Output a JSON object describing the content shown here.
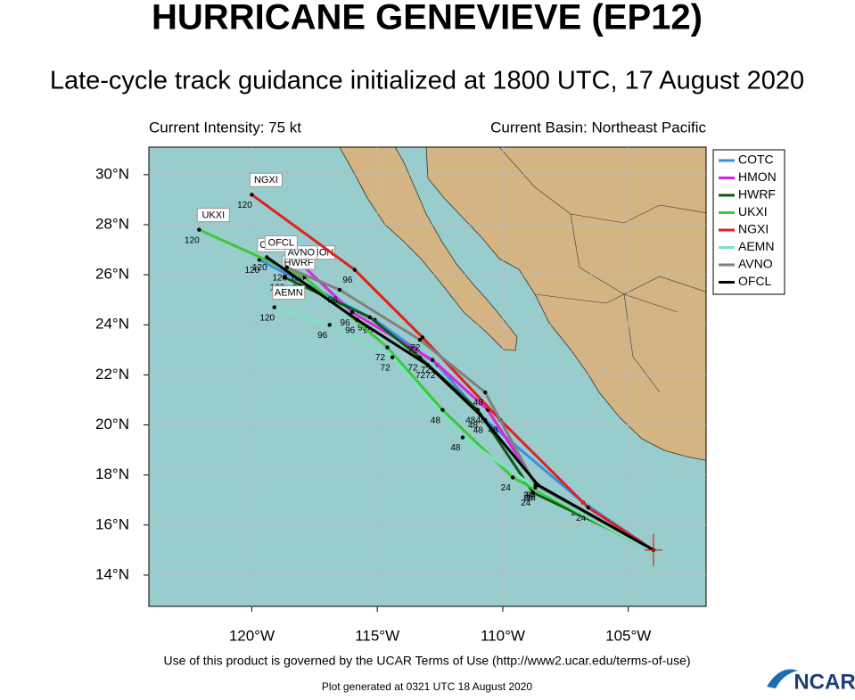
{
  "chart_data": {
    "type": "line",
    "title": "HURRICANE GENEVIEVE (EP12)",
    "subtitle": "Late-cycle track guidance initialized at 1800 UTC, 17 August 2020",
    "info": [
      "Current Intensity: 75 kt",
      "Current Basin: Northeast Pacific"
    ],
    "footer": "Use of this product is governed by the UCAR Terms of Use (http://www2.ucar.edu/terms-of-use)",
    "generated": "Plot generated at 0321 UTC   18 August 2020",
    "logo": "NCAR",
    "hour_labels": [
      "24",
      "48",
      "72",
      "96",
      "120"
    ],
    "xlim": [
      -124.1,
      -101.9
    ],
    "ylim": [
      12.75,
      31.1
    ],
    "xticks": [
      {
        "value": -120,
        "label": "120°W"
      },
      {
        "value": -115,
        "label": "115°W"
      },
      {
        "value": -110,
        "label": "110°W"
      },
      {
        "value": -105,
        "label": "105°W"
      }
    ],
    "yticks": [
      {
        "value": 14,
        "label": "14°N"
      },
      {
        "value": 16,
        "label": "16°N"
      },
      {
        "value": 18,
        "label": "18°N"
      },
      {
        "value": 20,
        "label": "20°N"
      },
      {
        "value": 22,
        "label": "22°N"
      },
      {
        "value": 24,
        "label": "24°N"
      },
      {
        "value": 26,
        "label": "26°N"
      },
      {
        "value": 28,
        "label": "28°N"
      },
      {
        "value": 30,
        "label": "30°N"
      }
    ],
    "grid": true,
    "legend": "right",
    "series": [
      {
        "name": "COTC",
        "color": "#3a8ee6",
        "x": [
          -104.0,
          -106.8,
          -110.7,
          -112.6,
          -115.1,
          -119.7
        ],
        "values": [
          15.0,
          16.9,
          20.2,
          22.4,
          24.2,
          26.6
        ]
      },
      {
        "name": "HMON",
        "color": "#e020e0",
        "x": [
          -104.0,
          -108.6,
          -110.6,
          -112.8,
          -116.0,
          -117.9
        ],
        "values": [
          15.0,
          17.5,
          20.6,
          22.6,
          24.5,
          26.3
        ]
      },
      {
        "name": "HWRF",
        "color": "#0d5a12",
        "x": [
          -104.0,
          -108.8,
          -111.0,
          -113.3,
          -115.3,
          -118.7
        ],
        "values": [
          15.0,
          17.3,
          20.6,
          22.7,
          24.3,
          25.9
        ]
      },
      {
        "name": "UKXI",
        "color": "#3cc83c",
        "x": [
          -104.0,
          -109.6,
          -112.4,
          -114.6,
          -117.9,
          -122.1
        ],
        "values": [
          14.9,
          17.9,
          20.6,
          23.1,
          25.9,
          27.8
        ]
      },
      {
        "name": "NGXI",
        "color": "#e02020",
        "x": [
          -104.0,
          -106.6,
          -110.1,
          -113.2,
          -115.9,
          -120.0
        ],
        "values": [
          15.0,
          16.7,
          20.2,
          23.5,
          26.2,
          29.2
        ]
      },
      {
        "name": "AEMN",
        "color": "#80e0c0",
        "x": [
          -104.0,
          -108.7,
          -111.6,
          -114.4,
          -116.9,
          -119.1
        ],
        "values": [
          14.9,
          17.5,
          19.5,
          22.7,
          24.0,
          24.7
        ]
      },
      {
        "name": "AVNO",
        "color": "#808080",
        "x": [
          -104.0,
          -108.7,
          -110.7,
          -113.3,
          -116.5,
          -118.6
        ],
        "values": [
          15.0,
          17.6,
          21.3,
          23.4,
          25.4,
          26.3
        ]
      },
      {
        "name": "OFCL",
        "color": "#000000",
        "x": [
          -104.0,
          -108.6,
          -110.9,
          -113.0,
          -115.8,
          -119.4
        ],
        "values": [
          15.0,
          17.6,
          20.4,
          22.4,
          24.2,
          26.7
        ]
      }
    ]
  }
}
